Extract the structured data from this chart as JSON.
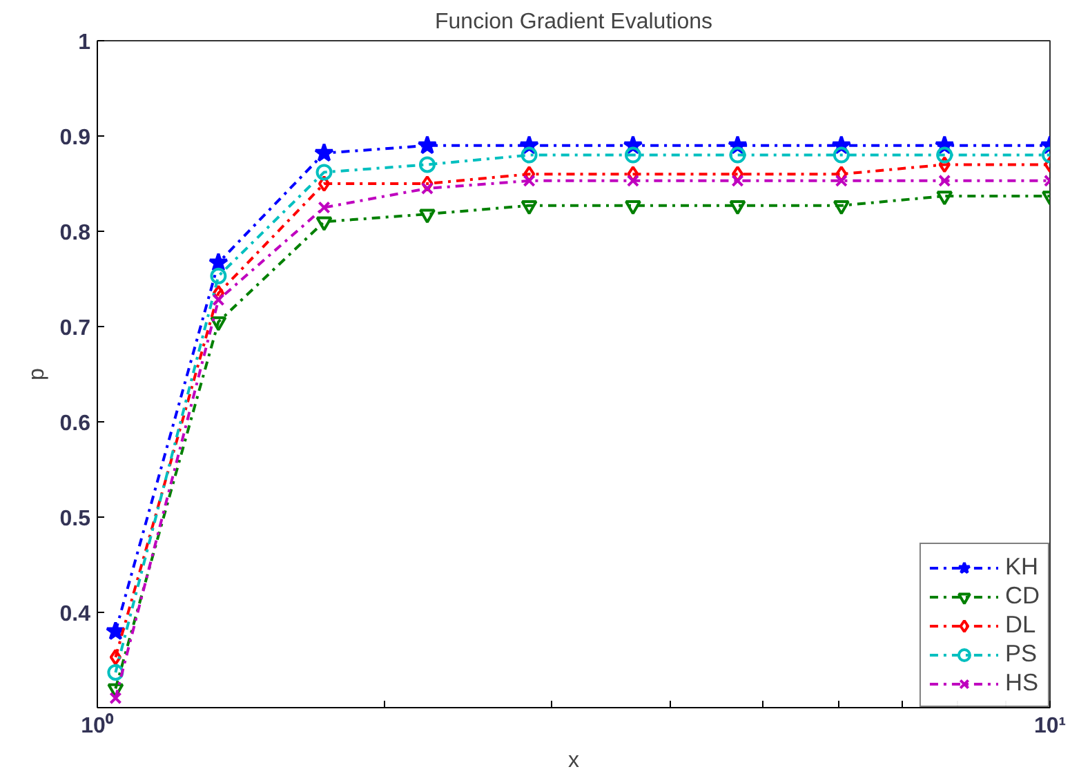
{
  "chart_data": {
    "type": "line",
    "title": "Funcion Gradient Evalutions",
    "xlabel": "x",
    "ylabel": "p",
    "x": [
      1.045,
      1.34,
      1.73,
      2.22,
      2.84,
      3.65,
      4.7,
      6.04,
      7.75,
      10
    ],
    "log": "x",
    "xlim": [
      1,
      10
    ],
    "xticks": [
      {
        "value": 1,
        "label": "10⁰"
      },
      {
        "value": 2,
        "label": null
      },
      {
        "value": 3,
        "label": null
      },
      {
        "value": 4,
        "label": null
      },
      {
        "value": 5,
        "label": null
      },
      {
        "value": 6,
        "label": null
      },
      {
        "value": 7,
        "label": null
      },
      {
        "value": 8,
        "label": null
      },
      {
        "value": 9,
        "label": null
      },
      {
        "value": 10,
        "label": "10¹"
      }
    ],
    "ylim": [
      0.3,
      1
    ],
    "yticks": [
      0.4,
      0.5,
      0.6,
      0.7,
      0.8,
      0.9,
      1
    ],
    "grid": false,
    "legend": "bottom right",
    "line_style": "dashdot",
    "series": [
      {
        "name": "KH",
        "color": "#0000ff",
        "marker": "star",
        "values": [
          0.38,
          0.767,
          0.882,
          0.89,
          0.89,
          0.89,
          0.89,
          0.89,
          0.89,
          0.89
        ]
      },
      {
        "name": "CD",
        "color": "#008000",
        "marker": "triangle",
        "values": [
          0.32,
          0.705,
          0.81,
          0.818,
          0.827,
          0.827,
          0.827,
          0.827,
          0.837,
          0.837
        ]
      },
      {
        "name": "DL",
        "color": "#ff0000",
        "marker": "diamond",
        "values": [
          0.353,
          0.735,
          0.85,
          0.85,
          0.86,
          0.86,
          0.86,
          0.86,
          0.87,
          0.87
        ]
      },
      {
        "name": "PS",
        "color": "#00bfbf",
        "marker": "circle",
        "values": [
          0.337,
          0.753,
          0.862,
          0.87,
          0.88,
          0.88,
          0.88,
          0.88,
          0.88,
          0.88
        ]
      },
      {
        "name": "HS",
        "color": "#bf00bf",
        "marker": "cross",
        "values": [
          0.31,
          0.728,
          0.825,
          0.845,
          0.853,
          0.853,
          0.853,
          0.853,
          0.853,
          0.853
        ]
      }
    ]
  }
}
